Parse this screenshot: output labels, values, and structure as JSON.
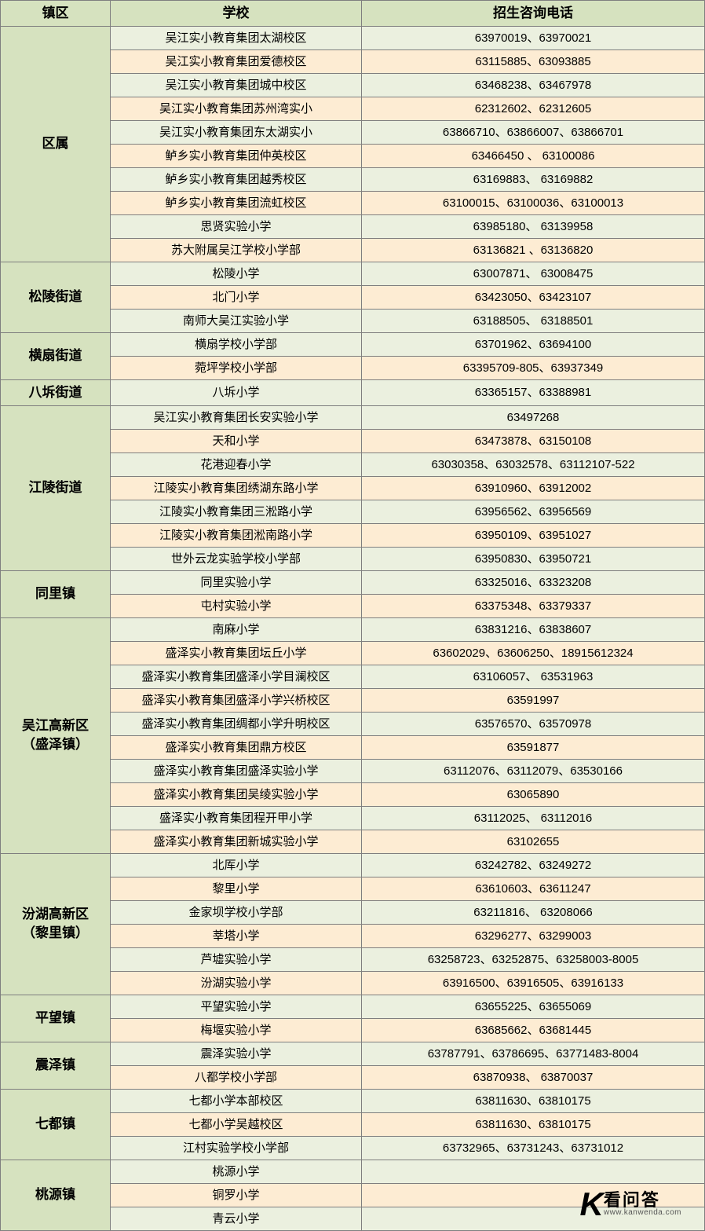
{
  "colors": {
    "header_bg": "#d6e2bf",
    "row_odd_bg": "#ebf0df",
    "row_even_bg": "#fdecd3",
    "border": "#7f7f7f",
    "text": "#000000"
  },
  "columns": {
    "district": "镇区",
    "school": "学校",
    "phone": "招生咨询电话"
  },
  "districts": [
    {
      "name": "区属",
      "rows": [
        {
          "school": "吴江实小教育集团太湖校区",
          "phone": "63970019、63970021"
        },
        {
          "school": "吴江实小教育集团爱德校区",
          "phone": "63115885、63093885"
        },
        {
          "school": "吴江实小教育集团城中校区",
          "phone": "63468238、63467978"
        },
        {
          "school": "吴江实小教育集团苏州湾实小",
          "phone": "62312602、62312605"
        },
        {
          "school": "吴江实小教育集团东太湖实小",
          "phone": "63866710、63866007、63866701"
        },
        {
          "school": "鲈乡实小教育集团仲英校区",
          "phone": "63466450 、 63100086"
        },
        {
          "school": "鲈乡实小教育集团越秀校区",
          "phone": "63169883、 63169882"
        },
        {
          "school": "鲈乡实小教育集团流虹校区",
          "phone": "63100015、63100036、63100013"
        },
        {
          "school": "思贤实验小学",
          "phone": "63985180、 63139958"
        },
        {
          "school": "苏大附属吴江学校小学部",
          "phone": "63136821 、63136820"
        }
      ]
    },
    {
      "name": "松陵街道",
      "rows": [
        {
          "school": "松陵小学",
          "phone": "63007871、 63008475"
        },
        {
          "school": "北门小学",
          "phone": "63423050、63423107"
        },
        {
          "school": "南师大吴江实验小学",
          "phone": "63188505、 63188501"
        }
      ]
    },
    {
      "name": "横扇街道",
      "rows": [
        {
          "school": "横扇学校小学部",
          "phone": "63701962、63694100"
        },
        {
          "school": "菀坪学校小学部",
          "phone": "63395709-805、63937349"
        }
      ]
    },
    {
      "name": "八坼街道",
      "rows": [
        {
          "school": "八坼小学",
          "phone": "63365157、63388981"
        }
      ]
    },
    {
      "name": "江陵街道",
      "rows": [
        {
          "school": "吴江实小教育集团长安实验小学",
          "phone": "63497268"
        },
        {
          "school": "天和小学",
          "phone": "63473878、63150108"
        },
        {
          "school": "花港迎春小学",
          "phone": "63030358、63032578、63112107-522"
        },
        {
          "school": "江陵实小教育集团绣湖东路小学",
          "phone": "63910960、63912002"
        },
        {
          "school": "江陵实小教育集团三淞路小学",
          "phone": "63956562、63956569"
        },
        {
          "school": "江陵实小教育集团淞南路小学",
          "phone": "63950109、63951027"
        },
        {
          "school": "世外云龙实验学校小学部",
          "phone": "63950830、63950721"
        }
      ]
    },
    {
      "name": "同里镇",
      "rows": [
        {
          "school": "同里实验小学",
          "phone": "63325016、63323208"
        },
        {
          "school": "屯村实验小学",
          "phone": "63375348、63379337"
        }
      ]
    },
    {
      "name": "吴江高新区（盛泽镇）",
      "rows": [
        {
          "school": "南麻小学",
          "phone": "63831216、63838607"
        },
        {
          "school": "盛泽实小教育集团坛丘小学",
          "phone": "63602029、63606250、18915612324"
        },
        {
          "school": "盛泽实小教育集团盛泽小学目澜校区",
          "phone": "63106057、 63531963"
        },
        {
          "school": "盛泽实小教育集团盛泽小学兴桥校区",
          "phone": "63591997"
        },
        {
          "school": "盛泽实小教育集团绸都小学升明校区",
          "phone": "63576570、63570978"
        },
        {
          "school": "盛泽实小教育集团鼎方校区",
          "phone": "63591877"
        },
        {
          "school": "盛泽实小教育集团盛泽实验小学",
          "phone": "63112076、63112079、63530166"
        },
        {
          "school": "盛泽实小教育集团吴绫实验小学",
          "phone": "63065890"
        },
        {
          "school": "盛泽实小教育集团程开甲小学",
          "phone": "63112025、 63112016"
        },
        {
          "school": "盛泽实小教育集团新城实验小学",
          "phone": "63102655"
        }
      ]
    },
    {
      "name": "汾湖高新区（黎里镇）",
      "rows": [
        {
          "school": "北厍小学",
          "phone": "63242782、63249272"
        },
        {
          "school": "黎里小学",
          "phone": "63610603、63611247"
        },
        {
          "school": "金家坝学校小学部",
          "phone": "63211816、 63208066"
        },
        {
          "school": "莘塔小学",
          "phone": "63296277、63299003"
        },
        {
          "school": "芦墟实验小学",
          "phone": "63258723、63252875、63258003-8005"
        },
        {
          "school": "汾湖实验小学",
          "phone": "63916500、63916505、63916133"
        }
      ]
    },
    {
      "name": "平望镇",
      "rows": [
        {
          "school": "平望实验小学",
          "phone": "63655225、63655069"
        },
        {
          "school": "梅堰实验小学",
          "phone": "63685662、63681445"
        }
      ]
    },
    {
      "name": "震泽镇",
      "rows": [
        {
          "school": "震泽实验小学",
          "phone": "63787791、63786695、63771483-8004"
        },
        {
          "school": "八都学校小学部",
          "phone": "63870938、 63870037"
        }
      ]
    },
    {
      "name": "七都镇",
      "rows": [
        {
          "school": "七都小学本部校区",
          "phone": "63811630、63810175"
        },
        {
          "school": "七都小学吴越校区",
          "phone": "63811630、63810175"
        },
        {
          "school": "江村实验学校小学部",
          "phone": "63732965、63731243、63731012"
        }
      ]
    },
    {
      "name": "桃源镇",
      "rows": [
        {
          "school": "桃源小学",
          "phone": ""
        },
        {
          "school": "铜罗小学",
          "phone": ""
        },
        {
          "school": "青云小学",
          "phone": ""
        }
      ]
    }
  ],
  "watermark": {
    "logo": "K",
    "title": "看问答",
    "url": "www.kanwenda.com"
  }
}
